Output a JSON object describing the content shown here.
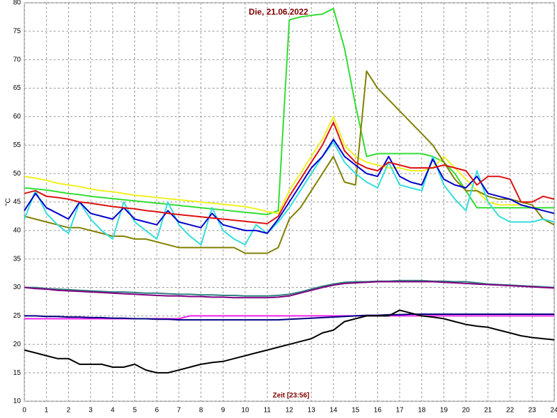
{
  "chart_data": {
    "type": "line",
    "title": "Die, 21.06.2022",
    "xlabel": "Zeit [23:56]",
    "ylabel": "°C",
    "xlim": [
      0,
      24
    ],
    "xticks": [
      0,
      1,
      2,
      3,
      4,
      5,
      6,
      7,
      8,
      9,
      10,
      11,
      12,
      13,
      14,
      15,
      16,
      17,
      18,
      19,
      20,
      21,
      22,
      23,
      24
    ],
    "ylim": [
      10,
      80
    ],
    "yticks": [
      10,
      15,
      20,
      25,
      30,
      35,
      40,
      45,
      50,
      55,
      60,
      65,
      70,
      75,
      80
    ],
    "grid": true,
    "x": [
      0,
      0.5,
      1,
      1.5,
      2,
      2.5,
      3,
      3.5,
      4,
      4.5,
      5,
      5.5,
      6,
      6.5,
      7,
      7.5,
      8,
      8.5,
      9,
      9.5,
      10,
      10.5,
      11,
      11.5,
      12,
      12.5,
      13,
      13.5,
      14,
      14.5,
      15,
      15.5,
      16,
      16.5,
      17,
      17.5,
      18,
      18.5,
      19,
      19.5,
      20,
      20.5,
      21,
      21.5,
      22,
      22.5,
      23,
      23.5,
      24
    ],
    "series": [
      {
        "color": "#33dd33",
        "values": [
          47.5,
          47.3,
          47.1,
          46.8,
          46.5,
          46.3,
          46,
          45.8,
          45.6,
          45.4,
          45.2,
          45,
          44.8,
          44.6,
          44.4,
          44.2,
          44,
          43.8,
          43.6,
          43.4,
          43.2,
          43,
          42.8,
          43.5,
          77,
          77.5,
          77.8,
          78,
          79,
          72,
          62,
          53,
          53.5,
          53.5,
          53.5,
          53.5,
          53.5,
          53,
          52,
          50,
          47,
          44,
          44,
          44,
          44,
          44,
          44,
          44,
          44
        ]
      },
      {
        "color": "#f0f020",
        "values": [
          49.5,
          49.2,
          48.8,
          48.3,
          48,
          47.7,
          47.3,
          47,
          46.8,
          46.5,
          46.2,
          46,
          45.8,
          45.6,
          45.4,
          45.2,
          45,
          44.8,
          44.6,
          44.4,
          44.2,
          43.8,
          43.3,
          43,
          47,
          50,
          53,
          56,
          60,
          55,
          53,
          52,
          51.5,
          51,
          51,
          50.5,
          50.5,
          51,
          53,
          51,
          49,
          47,
          45,
          44.5,
          44.5,
          44.5,
          44,
          43.5,
          43
        ]
      },
      {
        "color": "#808000",
        "values": [
          42.5,
          42,
          41.5,
          41,
          40.5,
          40.5,
          40,
          39.5,
          39,
          39,
          38.5,
          38.5,
          38,
          37.5,
          37,
          37,
          37,
          37,
          37,
          37,
          36,
          36,
          36,
          37,
          42,
          44,
          47,
          50,
          53,
          48.5,
          48,
          68,
          65,
          63,
          61,
          59,
          57,
          55,
          52,
          49,
          47,
          47,
          46,
          45.5,
          45.5,
          45,
          44.5,
          42,
          41
        ]
      },
      {
        "color": "#33dddd",
        "values": [
          42,
          47,
          43,
          41,
          39.5,
          45,
          42,
          40,
          38.5,
          45,
          41.5,
          40,
          38.5,
          45,
          41,
          39,
          37.5,
          44,
          40,
          38.5,
          37.5,
          41,
          39.5,
          41.5,
          44,
          47,
          50,
          53,
          55.5,
          52,
          50,
          48.5,
          47.5,
          52,
          48,
          47.5,
          47,
          53,
          48,
          45.5,
          43.5,
          50.5,
          45,
          42.5,
          41.5,
          41.5,
          41.5,
          42,
          41.5
        ]
      },
      {
        "color": "#0000cc",
        "values": [
          43.5,
          46.5,
          44,
          43,
          42,
          45,
          43,
          42.5,
          42,
          44,
          42,
          41.5,
          41,
          43.5,
          41.5,
          41,
          40.5,
          43,
          41,
          40.5,
          40,
          40,
          39.5,
          42,
          45,
          48,
          51,
          53,
          56,
          53,
          51.5,
          50,
          49.5,
          53,
          49.5,
          48.5,
          48,
          52.5,
          49,
          48,
          47.5,
          49.5,
          46.5,
          46,
          45.5,
          44.5,
          44,
          43.5,
          43
        ]
      },
      {
        "color": "#dd1111",
        "values": [
          46.5,
          47,
          46,
          45.8,
          45.5,
          45,
          44.8,
          44.5,
          44.2,
          44,
          43.8,
          43.5,
          43.3,
          43,
          42.8,
          42.6,
          42.4,
          42.2,
          42,
          41.8,
          41.6,
          41.4,
          41.2,
          42.5,
          46,
          49,
          52,
          55,
          59,
          54,
          52,
          51,
          50.5,
          52,
          51.5,
          51,
          51,
          51,
          51.5,
          51,
          50.5,
          48,
          49.5,
          49.5,
          49,
          45,
          45,
          46,
          45.5
        ]
      },
      {
        "color": "#2f8080",
        "values": [
          30,
          30,
          29.8,
          29.7,
          29.6,
          29.5,
          29.4,
          29.3,
          29.2,
          29.2,
          29.1,
          29,
          29,
          28.9,
          28.8,
          28.8,
          28.7,
          28.7,
          28.6,
          28.6,
          28.5,
          28.5,
          28.5,
          28.6,
          28.8,
          29.2,
          29.7,
          30.2,
          30.6,
          30.9,
          31,
          31,
          31.1,
          31.1,
          31.2,
          31.2,
          31.2,
          31.1,
          31.1,
          31,
          31,
          30.8,
          30.6,
          30.5,
          30.4,
          30.3,
          30.2,
          30.1,
          30
        ]
      },
      {
        "color": "#800080",
        "values": [
          30,
          29.8,
          29.7,
          29.5,
          29.4,
          29.3,
          29.2,
          29.1,
          29,
          28.9,
          28.8,
          28.7,
          28.6,
          28.5,
          28.5,
          28.4,
          28.4,
          28.3,
          28.3,
          28.2,
          28.2,
          28.2,
          28.2,
          28.3,
          28.5,
          29,
          29.5,
          30,
          30.4,
          30.7,
          30.8,
          30.9,
          31,
          31,
          31,
          31,
          31,
          31,
          30.9,
          30.8,
          30.7,
          30.6,
          30.5,
          30.4,
          30.3,
          30.2,
          30.1,
          30,
          29.9
        ]
      },
      {
        "color": "#ee22ee",
        "values": [
          24.5,
          24.5,
          24.5,
          24.5,
          24.5,
          24.5,
          24.5,
          24.5,
          24.5,
          24.5,
          24.5,
          24.5,
          24.5,
          24.5,
          24.5,
          25,
          25,
          25,
          25,
          25,
          25,
          25,
          25,
          25,
          25,
          25,
          25,
          25,
          25,
          25,
          25,
          25,
          25,
          25,
          25,
          25,
          25,
          25,
          25,
          25,
          25,
          25,
          25,
          25,
          25,
          25,
          25,
          25,
          25
        ]
      },
      {
        "color": "#000080",
        "values": [
          25,
          25,
          24.9,
          24.9,
          24.8,
          24.8,
          24.7,
          24.7,
          24.6,
          24.6,
          24.5,
          24.5,
          24.4,
          24.4,
          24.3,
          24.3,
          24.3,
          24.3,
          24.3,
          24.3,
          24.3,
          24.3,
          24.3,
          24.3,
          24.4,
          24.5,
          24.6,
          24.7,
          24.8,
          24.9,
          25,
          25.1,
          25.1,
          25.2,
          25.2,
          25.3,
          25.3,
          25.3,
          25.3,
          25.3,
          25.3,
          25.3,
          25.3,
          25.3,
          25.3,
          25.3,
          25.3,
          25.3,
          25.3
        ]
      },
      {
        "color": "#000000",
        "values": [
          19,
          18.5,
          18,
          17.5,
          17.5,
          16.5,
          16.5,
          16.5,
          16,
          16,
          16.5,
          15.5,
          15,
          15,
          15.5,
          16,
          16.5,
          16.8,
          17,
          17.5,
          18,
          18.5,
          19,
          19.5,
          20,
          20.5,
          21,
          22,
          22.5,
          24,
          24.5,
          25,
          25,
          25,
          26,
          25.5,
          25,
          24.8,
          24.5,
          24,
          23.5,
          23.2,
          23,
          22.5,
          22,
          21.5,
          21.2,
          21,
          20.8
        ]
      }
    ]
  }
}
